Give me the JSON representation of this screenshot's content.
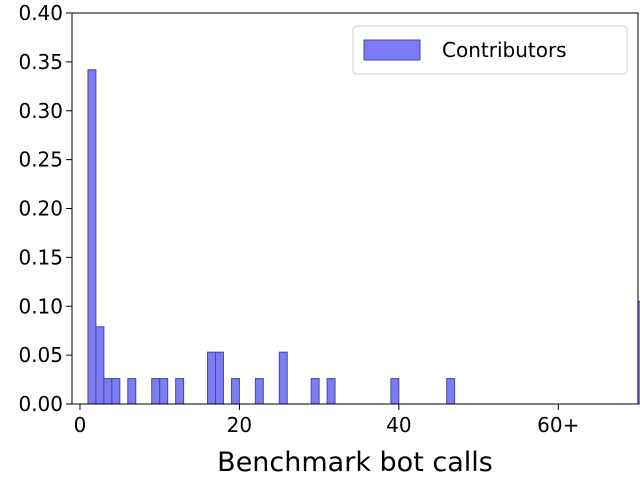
{
  "chart_data": {
    "type": "bar",
    "title": "",
    "xlabel": "Benchmark bot calls",
    "ylabel": "",
    "xlim": [
      -1,
      70
    ],
    "ylim": [
      0,
      0.4
    ],
    "xticks": [
      {
        "value": 0,
        "label": "0"
      },
      {
        "value": 20,
        "label": "20"
      },
      {
        "value": 40,
        "label": "40"
      },
      {
        "value": 60,
        "label": "60+"
      }
    ],
    "yticks": [
      {
        "value": 0.0,
        "label": "0.00"
      },
      {
        "value": 0.05,
        "label": "0.05"
      },
      {
        "value": 0.1,
        "label": "0.10"
      },
      {
        "value": 0.15,
        "label": "0.15"
      },
      {
        "value": 0.2,
        "label": "0.20"
      },
      {
        "value": 0.25,
        "label": "0.25"
      },
      {
        "value": 0.3,
        "label": "0.30"
      },
      {
        "value": 0.35,
        "label": "0.35"
      },
      {
        "value": 0.4,
        "label": "0.40"
      }
    ],
    "bin_width": 1,
    "grid": false,
    "legend_position": "top-right",
    "series": [
      {
        "name": "Contributors",
        "color": "#7b7bf5",
        "edge_color": "#4a4a9a",
        "bins": [
          {
            "x": 1,
            "value": 0.342
          },
          {
            "x": 2,
            "value": 0.079
          },
          {
            "x": 3,
            "value": 0.026
          },
          {
            "x": 4,
            "value": 0.026
          },
          {
            "x": 6,
            "value": 0.026
          },
          {
            "x": 9,
            "value": 0.026
          },
          {
            "x": 10,
            "value": 0.026
          },
          {
            "x": 12,
            "value": 0.026
          },
          {
            "x": 16,
            "value": 0.053
          },
          {
            "x": 17,
            "value": 0.053
          },
          {
            "x": 19,
            "value": 0.026
          },
          {
            "x": 22,
            "value": 0.026
          },
          {
            "x": 25,
            "value": 0.053
          },
          {
            "x": 29,
            "value": 0.026
          },
          {
            "x": 31,
            "value": 0.026
          },
          {
            "x": 39,
            "value": 0.026
          },
          {
            "x": 46,
            "value": 0.026
          },
          {
            "x": 70,
            "value": 0.105
          }
        ]
      }
    ]
  }
}
